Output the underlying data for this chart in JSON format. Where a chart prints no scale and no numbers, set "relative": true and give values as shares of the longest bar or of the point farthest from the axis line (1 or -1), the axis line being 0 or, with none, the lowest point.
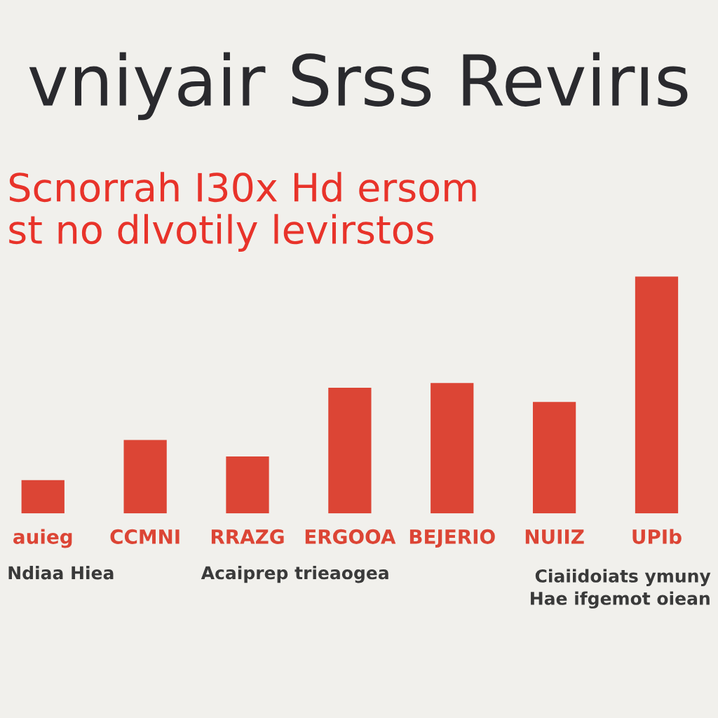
{
  "chart_data": {
    "type": "bar",
    "title": "vniyair Srss Revirıs",
    "subtitle": "Scnorrah I30x Hd ersom\nst no dlvotily levirstos",
    "categories": [
      "auieg",
      "CCMNI",
      "RRAZG",
      "ERGOOA",
      "BEJERIO",
      "NUIIZ",
      "UPIb"
    ],
    "values": [
      0.14,
      0.31,
      0.24,
      0.53,
      0.55,
      0.47,
      1
    ],
    "color": "#dc4535",
    "relative": true,
    "grid": false,
    "legend": false,
    "annotations": [
      "Ndiaa Hiea",
      "Acaiprep trieaogea",
      "Ciaiidoiats ymuny\nHae ifgemot oiean"
    ]
  }
}
